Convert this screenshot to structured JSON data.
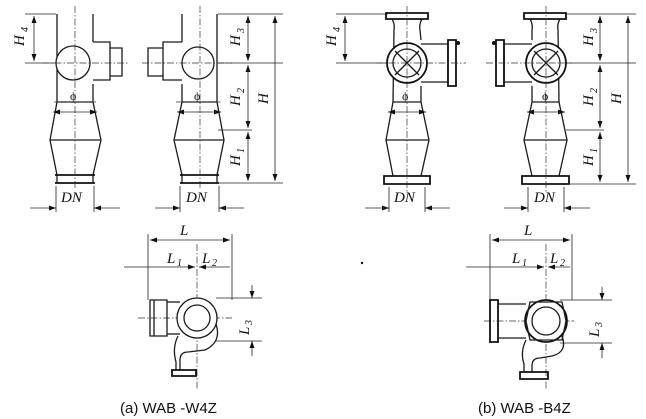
{
  "labels": {
    "h1": "H",
    "h1_sub": "1",
    "h2": "H",
    "h2_sub": "2",
    "h3": "H",
    "h3_sub": "3",
    "h4": "H",
    "h4_sub": "4",
    "h_total": "H",
    "dn": "DN",
    "phi": "ϕ",
    "l": "L",
    "l1": "L",
    "l1_sub": "1",
    "l2": "L",
    "l2_sub": "2",
    "l3": "L",
    "l3_sub": "3"
  },
  "captions": {
    "a": "(a) WAB -W4Z",
    "b": "(b) WAB -B4Z"
  }
}
